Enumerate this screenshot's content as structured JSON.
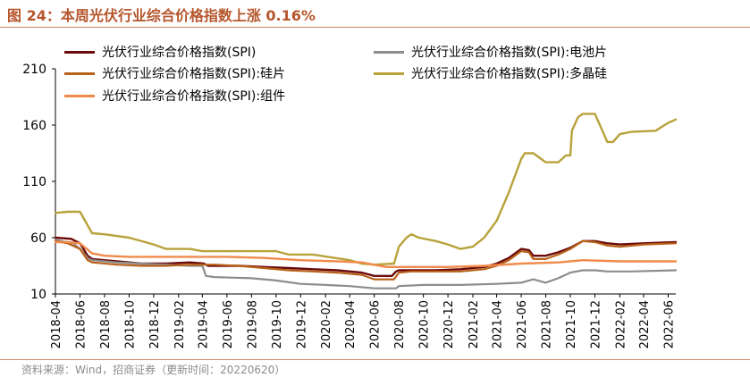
{
  "title": "图 24：本周光伏行业综合价格指数上涨 0.16%",
  "source": "资料来源：Wind，招商证券（更新时间：20220620）",
  "chart_data": {
    "type": "line",
    "ylim": [
      10,
      210
    ],
    "yticks": [
      10,
      60,
      110,
      160,
      210
    ],
    "x_labels": [
      "2018-04",
      "2018-06",
      "2018-08",
      "2018-10",
      "2018-12",
      "2019-02",
      "2019-04",
      "2019-06",
      "2019-08",
      "2019-10",
      "2019-12",
      "2020-02",
      "2020-04",
      "2020-06",
      "2020-08",
      "2020-10",
      "2020-12",
      "2021-02",
      "2021-04",
      "2021-06",
      "2021-08",
      "2021-10",
      "2021-12",
      "2022-02",
      "2022-04",
      "2022-06"
    ],
    "x_start": "2018-04",
    "x_end": "2022-06-20",
    "series": [
      {
        "name": "光伏行业综合价格指数(SPI)",
        "color": "#6b0a0a",
        "width": 2.4,
        "points": [
          [
            "2018-04",
            60
          ],
          [
            "2018-05-10",
            59
          ],
          [
            "2018-06",
            55
          ],
          [
            "2018-06-20",
            44
          ],
          [
            "2018-07",
            41
          ],
          [
            "2018-09",
            39
          ],
          [
            "2018-11",
            37
          ],
          [
            "2019-01",
            37
          ],
          [
            "2019-03",
            38
          ],
          [
            "2019-04-05",
            37
          ],
          [
            "2019-04-15",
            35
          ],
          [
            "2019-07",
            35
          ],
          [
            "2019-09",
            34
          ],
          [
            "2019-11",
            33
          ],
          [
            "2020-01",
            32
          ],
          [
            "2020-03",
            31
          ],
          [
            "2020-05",
            29
          ],
          [
            "2020-06",
            26
          ],
          [
            "2020-07-15",
            26
          ],
          [
            "2020-07-25",
            30
          ],
          [
            "2020-08",
            31
          ],
          [
            "2020-11",
            31
          ],
          [
            "2021-01",
            32
          ],
          [
            "2021-03",
            34
          ],
          [
            "2021-04",
            37
          ],
          [
            "2021-05",
            42
          ],
          [
            "2021-06",
            50
          ],
          [
            "2021-06-20",
            49
          ],
          [
            "2021-07",
            44
          ],
          [
            "2021-08",
            44
          ],
          [
            "2021-09",
            47
          ],
          [
            "2021-10",
            51
          ],
          [
            "2021-11",
            57
          ],
          [
            "2021-12",
            57
          ],
          [
            "2022-01",
            55
          ],
          [
            "2022-02",
            54
          ],
          [
            "2022-04",
            55
          ],
          [
            "2022-06-20",
            56
          ]
        ]
      },
      {
        "name": "光伏行业综合价格指数(SPI):电池片",
        "color": "#8c8c8c",
        "width": 2.2,
        "points": [
          [
            "2018-04",
            58
          ],
          [
            "2018-05-15",
            55
          ],
          [
            "2018-06",
            50
          ],
          [
            "2018-06-20",
            42
          ],
          [
            "2018-07",
            40
          ],
          [
            "2018-09",
            38
          ],
          [
            "2018-11",
            37
          ],
          [
            "2019-01",
            36
          ],
          [
            "2019-03",
            35
          ],
          [
            "2019-04-01",
            35
          ],
          [
            "2019-04-10",
            26
          ],
          [
            "2019-05",
            25
          ],
          [
            "2019-08",
            24
          ],
          [
            "2019-10",
            22
          ],
          [
            "2019-12",
            19
          ],
          [
            "2020-02",
            18
          ],
          [
            "2020-04",
            17
          ],
          [
            "2020-06",
            15
          ],
          [
            "2020-07-25",
            15
          ],
          [
            "2020-08",
            17
          ],
          [
            "2020-10",
            18
          ],
          [
            "2021-01",
            18
          ],
          [
            "2021-04",
            19
          ],
          [
            "2021-06",
            20
          ],
          [
            "2021-07",
            23
          ],
          [
            "2021-08",
            20
          ],
          [
            "2021-09",
            24
          ],
          [
            "2021-10",
            29
          ],
          [
            "2021-11",
            31
          ],
          [
            "2021-12",
            31
          ],
          [
            "2022-01",
            30
          ],
          [
            "2022-03",
            30
          ],
          [
            "2022-06-20",
            31
          ]
        ]
      },
      {
        "name": "光伏行业综合价格指数(SPI):硅片",
        "color": "#b8621a",
        "width": 2.2,
        "points": [
          [
            "2018-04",
            57
          ],
          [
            "2018-05",
            55
          ],
          [
            "2018-06",
            50
          ],
          [
            "2018-06-20",
            40
          ],
          [
            "2018-07",
            38
          ],
          [
            "2018-09",
            36
          ],
          [
            "2018-11",
            35
          ],
          [
            "2019-01",
            35
          ],
          [
            "2019-03",
            36
          ],
          [
            "2019-05",
            36
          ],
          [
            "2019-07",
            35
          ],
          [
            "2019-09",
            33
          ],
          [
            "2019-11",
            31
          ],
          [
            "2020-01",
            30
          ],
          [
            "2020-03",
            29
          ],
          [
            "2020-05",
            27
          ],
          [
            "2020-06",
            23
          ],
          [
            "2020-07-20",
            23
          ],
          [
            "2020-08",
            29
          ],
          [
            "2020-09",
            30
          ],
          [
            "2021-01",
            30
          ],
          [
            "2021-03",
            32
          ],
          [
            "2021-04",
            35
          ],
          [
            "2021-05",
            40
          ],
          [
            "2021-06",
            48
          ],
          [
            "2021-06-20",
            47
          ],
          [
            "2021-07",
            41
          ],
          [
            "2021-08",
            41
          ],
          [
            "2021-09",
            45
          ],
          [
            "2021-10",
            50
          ],
          [
            "2021-11",
            57
          ],
          [
            "2021-12",
            56
          ],
          [
            "2022-01",
            53
          ],
          [
            "2022-02",
            52
          ],
          [
            "2022-04",
            54
          ],
          [
            "2022-06-20",
            55
          ]
        ]
      },
      {
        "name": "光伏行业综合价格指数(SPI):多晶硅",
        "color": "#b8a23a",
        "width": 2.4,
        "points": [
          [
            "2018-04",
            82
          ],
          [
            "2018-05",
            83
          ],
          [
            "2018-06",
            83
          ],
          [
            "2018-07",
            64
          ],
          [
            "2018-08",
            63
          ],
          [
            "2018-10",
            60
          ],
          [
            "2018-12",
            54
          ],
          [
            "2019-01",
            50
          ],
          [
            "2019-03",
            50
          ],
          [
            "2019-04",
            48
          ],
          [
            "2019-07",
            48
          ],
          [
            "2019-10",
            48
          ],
          [
            "2019-11",
            45
          ],
          [
            "2020-01",
            45
          ],
          [
            "2020-04",
            40
          ],
          [
            "2020-05",
            37
          ],
          [
            "2020-06",
            36
          ],
          [
            "2020-07-20",
            37
          ],
          [
            "2020-08",
            52
          ],
          [
            "2020-08-20",
            60
          ],
          [
            "2020-09",
            63
          ],
          [
            "2020-09-20",
            60
          ],
          [
            "2020-11",
            57
          ],
          [
            "2020-12",
            54
          ],
          [
            "2021-01",
            50
          ],
          [
            "2021-02",
            52
          ],
          [
            "2021-03",
            60
          ],
          [
            "2021-04",
            75
          ],
          [
            "2021-05",
            100
          ],
          [
            "2021-06",
            130
          ],
          [
            "2021-06-10",
            135
          ],
          [
            "2021-07",
            135
          ],
          [
            "2021-08",
            127
          ],
          [
            "2021-09",
            127
          ],
          [
            "2021-09-20",
            133
          ],
          [
            "2021-10",
            133
          ],
          [
            "2021-10-05",
            155
          ],
          [
            "2021-10-20",
            167
          ],
          [
            "2021-11",
            170
          ],
          [
            "2021-12",
            170
          ],
          [
            "2022-01",
            145
          ],
          [
            "2022-01-15",
            145
          ],
          [
            "2022-02",
            152
          ],
          [
            "2022-03",
            154
          ],
          [
            "2022-05",
            155
          ],
          [
            "2022-06",
            162
          ],
          [
            "2022-06-20",
            165
          ]
        ]
      },
      {
        "name": "光伏行业综合价格指数(SPI):组件",
        "color": "#f08a4b",
        "width": 2.4,
        "points": [
          [
            "2018-04",
            56
          ],
          [
            "2018-05",
            56
          ],
          [
            "2018-06",
            55
          ],
          [
            "2018-07",
            46
          ],
          [
            "2018-08",
            44
          ],
          [
            "2018-10",
            43
          ],
          [
            "2018-12",
            43
          ],
          [
            "2019-03",
            43
          ],
          [
            "2019-06",
            43
          ],
          [
            "2019-09",
            42
          ],
          [
            "2019-12",
            40
          ],
          [
            "2020-03",
            39
          ],
          [
            "2020-05",
            38
          ],
          [
            "2020-07",
            34
          ],
          [
            "2020-08",
            34
          ],
          [
            "2020-12",
            34
          ],
          [
            "2021-03",
            35
          ],
          [
            "2021-06",
            37
          ],
          [
            "2021-09",
            38
          ],
          [
            "2021-11",
            40
          ],
          [
            "2022-02",
            39
          ],
          [
            "2022-06-20",
            39
          ]
        ]
      }
    ]
  }
}
